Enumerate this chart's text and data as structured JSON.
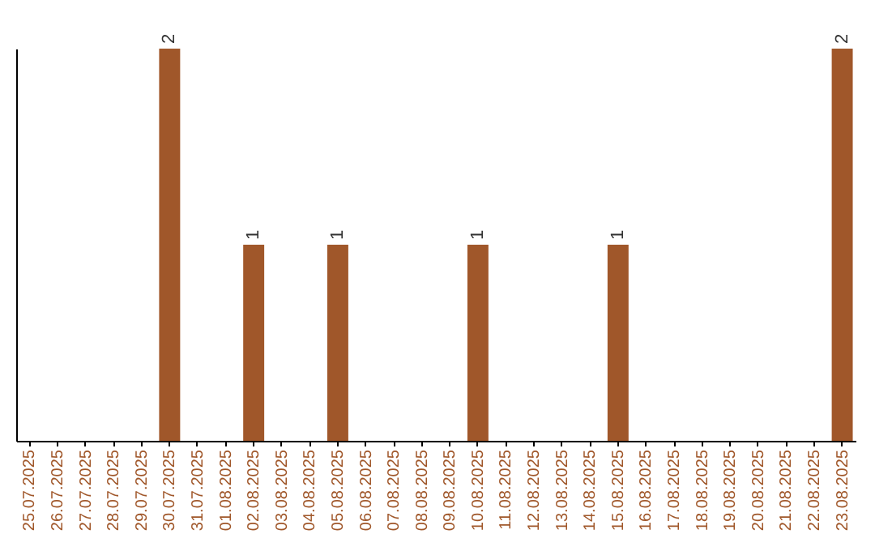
{
  "chart_data": {
    "type": "bar",
    "categories": [
      "25.07.2025",
      "26.07.2025",
      "27.07.2025",
      "28.07.2025",
      "29.07.2025",
      "30.07.2025",
      "31.07.2025",
      "01.08.2025",
      "02.08.2025",
      "03.08.2025",
      "04.08.2025",
      "05.08.2025",
      "06.08.2025",
      "07.08.2025",
      "08.08.2025",
      "09.08.2025",
      "10.08.2025",
      "11.08.2025",
      "12.08.2025",
      "13.08.2025",
      "14.08.2025",
      "15.08.2025",
      "16.08.2025",
      "17.08.2025",
      "18.08.2025",
      "19.08.2025",
      "20.08.2025",
      "21.08.2025",
      "22.08.2025",
      "23.08.2025"
    ],
    "values": [
      0,
      0,
      0,
      0,
      0,
      2,
      0,
      0,
      1,
      0,
      0,
      1,
      0,
      0,
      0,
      0,
      1,
      0,
      0,
      0,
      0,
      1,
      0,
      0,
      0,
      0,
      0,
      0,
      0,
      2
    ],
    "value_labels": [
      null,
      null,
      null,
      null,
      null,
      "2",
      null,
      null,
      "1",
      null,
      null,
      "1",
      null,
      null,
      null,
      null,
      "1",
      null,
      null,
      null,
      null,
      "1",
      null,
      null,
      null,
      null,
      null,
      null,
      null,
      "2"
    ],
    "color": "#a0572a",
    "grid": false
  }
}
